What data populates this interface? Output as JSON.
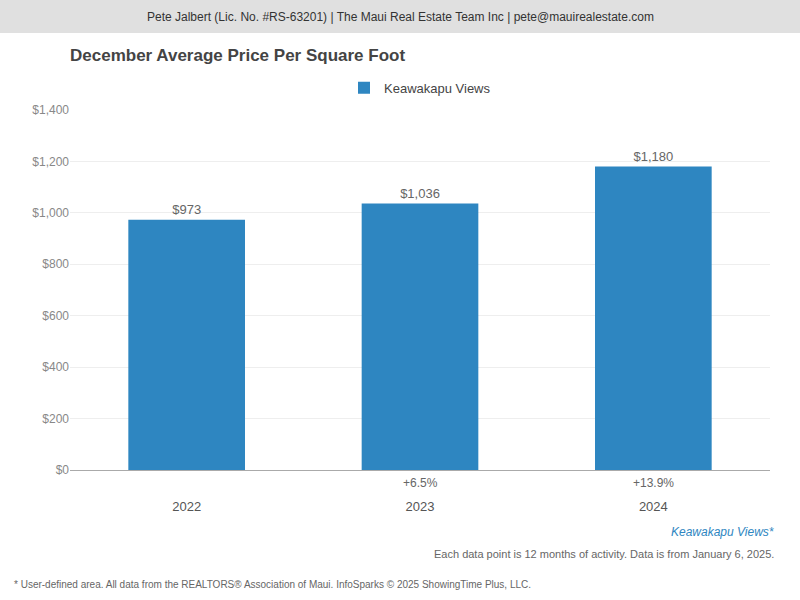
{
  "chart_data": {
    "type": "bar",
    "header": "Pete Jalbert (Lic. No. #RS-63201) | The Maui Real Estate Team Inc | pete@mauirealestate.com",
    "title": "December Average Price Per Square Foot",
    "categories": [
      "2022",
      "2023",
      "2024"
    ],
    "series": [
      {
        "name": "Keawakapu Views",
        "color": "#2E86C1",
        "values": [
          973,
          1036,
          1180
        ],
        "value_labels": [
          "$973",
          "$1,036",
          "$1,180"
        ]
      }
    ],
    "data_labels": true,
    "legend": "top",
    "grid": true,
    "ylim": [
      0,
      1400
    ],
    "yticks": [
      {
        "value": 0,
        "label": "$0"
      },
      {
        "value": 200,
        "label": "$200"
      },
      {
        "value": 400,
        "label": "$400"
      },
      {
        "value": 600,
        "label": "$600"
      },
      {
        "value": 800,
        "label": "$800"
      },
      {
        "value": 1000,
        "label": "$1,000"
      },
      {
        "value": 1200,
        "label": "$1,200"
      },
      {
        "value": 1400,
        "label": "$1,400"
      }
    ],
    "annotations": [
      {
        "text": "+6.5%",
        "x": "2023"
      },
      {
        "text": "+13.9%",
        "x": "2024"
      }
    ],
    "footer": [
      "Keawakapu Views*",
      "Each data point is 12 months of activity. Data is from January 6, 2025.",
      "* User-defined area. All data from the REALTORS® Association of Maui. InfoSparks © 2025 ShowingTime Plus, LLC."
    ]
  }
}
